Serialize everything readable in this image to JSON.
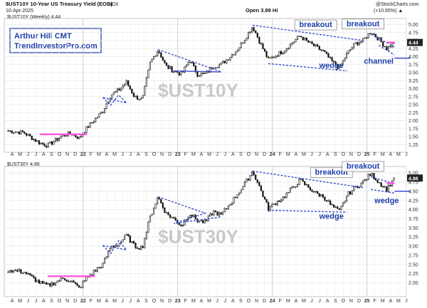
{
  "header": {
    "title1": "$UST10Y 10-Year US Treasury Yield (EOD)",
    "exchange1": "INDX",
    "date": "10-Apr-2025",
    "ohlc1": "Open 3.89 Hi",
    "change1": "(+10.65%) ▲",
    "credit": "@StockCharts.com",
    "series_label1": "$UST10Y (Weekly) 4.44",
    "series_label2": "$UST30Y 4.86"
  },
  "author": {
    "name": "Arthur Hill CMT",
    "site": "TrendInvestorPro.com"
  },
  "colors": {
    "price": "#111111",
    "pattern": "#3a4fd0",
    "base": "#ff55dd",
    "annotation": "#1c3fa8",
    "lastvalue_bg": "#222222",
    "watermark": "#c9c9c9"
  },
  "chart_data": [
    {
      "type": "candlestick",
      "timeframe": "weekly",
      "symbol": "$UST10Y",
      "watermark": "$UST10Y",
      "last_value": 4.44,
      "last_label": "4.44",
      "ylim": [
        1.1,
        5.1
      ],
      "yticks": [
        1.25,
        1.5,
        1.75,
        2.0,
        2.25,
        2.5,
        2.75,
        3.0,
        3.25,
        3.5,
        3.75,
        4.0,
        4.25,
        4.5,
        4.75,
        5.0
      ],
      "ytick_labels": [
        "1.25",
        "1.50",
        "1.75",
        "2.00",
        "2.25",
        "2.50",
        "2.75",
        "3.00",
        "3.25",
        "3.50",
        "3.75",
        "4.00",
        "4.25",
        "4.50",
        "4.75",
        "5.00"
      ],
      "x_range": [
        "2021-03",
        "2025-06"
      ],
      "anchors": [
        [
          "2021-03",
          1.68
        ],
        [
          "2021-05",
          1.62
        ],
        [
          "2021-07",
          1.3
        ],
        [
          "2021-08",
          1.22
        ],
        [
          "2021-10",
          1.55
        ],
        [
          "2021-11",
          1.6
        ],
        [
          "2021-12",
          1.45
        ],
        [
          "2022-01",
          1.78
        ],
        [
          "2022-03",
          2.3
        ],
        [
          "2022-04",
          2.8
        ],
        [
          "2022-05",
          2.95
        ],
        [
          "2022-06",
          3.2
        ],
        [
          "2022-07",
          2.75
        ],
        [
          "2022-08",
          2.65
        ],
        [
          "2022-09",
          3.8
        ],
        [
          "2022-10",
          4.22
        ],
        [
          "2022-11",
          3.7
        ],
        [
          "2022-12",
          3.55
        ],
        [
          "2023-01",
          3.45
        ],
        [
          "2023-02",
          3.9
        ],
        [
          "2023-03",
          3.45
        ],
        [
          "2023-04",
          3.45
        ],
        [
          "2023-05",
          3.7
        ],
        [
          "2023-06",
          3.75
        ],
        [
          "2023-08",
          4.2
        ],
        [
          "2023-09",
          4.55
        ],
        [
          "2023-10",
          4.95
        ],
        [
          "2023-11",
          4.4
        ],
        [
          "2023-12",
          3.9
        ],
        [
          "2024-01",
          4.05
        ],
        [
          "2024-02",
          4.2
        ],
        [
          "2024-04",
          4.65
        ],
        [
          "2024-05",
          4.45
        ],
        [
          "2024-06",
          4.3
        ],
        [
          "2024-07",
          4.15
        ],
        [
          "2024-08",
          3.85
        ],
        [
          "2024-09",
          3.65
        ],
        [
          "2024-10",
          4.1
        ],
        [
          "2024-11",
          4.4
        ],
        [
          "2024-12",
          4.5
        ],
        [
          "2025-01",
          4.78
        ],
        [
          "2025-02",
          4.55
        ],
        [
          "2025-03",
          4.25
        ],
        [
          "2025-04",
          4.44
        ]
      ],
      "patterns": [
        {
          "kind": "base",
          "color": "pink",
          "points": [
            [
              "2021-07",
              1.57
            ],
            [
              "2022-01",
              1.57
            ]
          ]
        },
        {
          "kind": "flag",
          "color": "blue",
          "points": [
            [
              "2022-03",
              2.72
            ],
            [
              "2022-04",
              2.48
            ],
            [
              "2022-05",
              2.8
            ],
            [
              "2022-06",
              2.55
            ],
            [
              "2022-03",
              2.72
            ]
          ]
        },
        {
          "kind": "triangle",
          "color": "blue",
          "points": [
            [
              "2022-10",
              4.22
            ],
            [
              "2023-04",
              3.7
            ],
            [
              "2023-06",
              3.52
            ],
            [
              "2022-12",
              3.55
            ],
            [
              "2023-06",
              3.52
            ]
          ]
        },
        {
          "kind": "wedge",
          "color": "blue",
          "points": [
            [
              "2023-10",
              4.98
            ],
            [
              "2024-12",
              4.5
            ]
          ]
        },
        {
          "kind": "wedge",
          "color": "blue",
          "points": [
            [
              "2023-12",
              3.78
            ],
            [
              "2024-10",
              3.55
            ]
          ]
        },
        {
          "kind": "channel",
          "color": "blue",
          "points": [
            [
              "2025-01",
              4.7
            ],
            [
              "2025-04",
              4.3
            ]
          ]
        },
        {
          "kind": "channel",
          "color": "blue",
          "points": [
            [
              "2025-02",
              4.35
            ],
            [
              "2025-04",
              4.05
            ]
          ]
        },
        {
          "kind": "breakout_level",
          "color": "blue",
          "points": [
            [
              "2025-04",
              3.95
            ],
            [
              "2025-06",
              3.95
            ]
          ]
        },
        {
          "kind": "breakout_level",
          "color": "pink",
          "points": [
            [
              "2025-03",
              4.44
            ],
            [
              "2025-04",
              4.44
            ]
          ]
        }
      ],
      "annotations": [
        {
          "text": "breakout",
          "x": "2024-06",
          "y": 4.92,
          "boxed": true
        },
        {
          "text": "breakout",
          "x": "2024-12",
          "y": 4.95,
          "boxed": true
        },
        {
          "text": "wedge",
          "x": "2024-08",
          "y": 3.65,
          "boxed": false
        },
        {
          "text": "channel",
          "x": "2025-02",
          "y": 3.78,
          "boxed": false
        }
      ]
    },
    {
      "type": "candlestick",
      "timeframe": "weekly",
      "symbol": "$UST30Y",
      "watermark": "$UST30Y",
      "last_value": 4.86,
      "last_label": "4.86",
      "ylim": [
        1.7,
        5.1
      ],
      "yticks": [
        2.0,
        2.25,
        2.5,
        2.75,
        3.0,
        3.25,
        3.5,
        3.75,
        4.0,
        4.25,
        4.5,
        4.75,
        5.0
      ],
      "ytick_labels": [
        "2.00",
        "2.25",
        "2.50",
        "2.75",
        "3.00",
        "3.25",
        "3.50",
        "3.75",
        "4.00",
        "4.25",
        "4.50",
        "4.75",
        "5.00"
      ],
      "x_range": [
        "2021-03",
        "2025-06"
      ],
      "anchors": [
        [
          "2021-03",
          2.35
        ],
        [
          "2021-05",
          2.3
        ],
        [
          "2021-07",
          2.0
        ],
        [
          "2021-08",
          1.92
        ],
        [
          "2021-10",
          2.12
        ],
        [
          "2021-11",
          2.05
        ],
        [
          "2021-12",
          1.85
        ],
        [
          "2022-01",
          2.15
        ],
        [
          "2022-03",
          2.5
        ],
        [
          "2022-04",
          2.98
        ],
        [
          "2022-05",
          3.05
        ],
        [
          "2022-06",
          3.3
        ],
        [
          "2022-07",
          3.0
        ],
        [
          "2022-08",
          2.95
        ],
        [
          "2022-09",
          3.8
        ],
        [
          "2022-10",
          4.35
        ],
        [
          "2022-11",
          3.9
        ],
        [
          "2022-12",
          3.75
        ],
        [
          "2023-01",
          3.55
        ],
        [
          "2023-02",
          3.9
        ],
        [
          "2023-03",
          3.7
        ],
        [
          "2023-04",
          3.65
        ],
        [
          "2023-05",
          3.95
        ],
        [
          "2023-06",
          3.85
        ],
        [
          "2023-08",
          4.4
        ],
        [
          "2023-09",
          4.7
        ],
        [
          "2023-10",
          5.05
        ],
        [
          "2023-11",
          4.55
        ],
        [
          "2023-12",
          4.02
        ],
        [
          "2024-01",
          4.2
        ],
        [
          "2024-02",
          4.35
        ],
        [
          "2024-04",
          4.8
        ],
        [
          "2024-05",
          4.62
        ],
        [
          "2024-06",
          4.45
        ],
        [
          "2024-07",
          4.35
        ],
        [
          "2024-08",
          4.1
        ],
        [
          "2024-09",
          3.95
        ],
        [
          "2024-10",
          4.4
        ],
        [
          "2024-11",
          4.6
        ],
        [
          "2024-12",
          4.75
        ],
        [
          "2025-01",
          4.98
        ],
        [
          "2025-02",
          4.75
        ],
        [
          "2025-03",
          4.55
        ],
        [
          "2025-04",
          4.86
        ]
      ],
      "patterns": [
        {
          "kind": "base",
          "color": "pink",
          "points": [
            [
              "2021-08",
              2.18
            ],
            [
              "2022-02",
              2.18
            ]
          ]
        },
        {
          "kind": "flag",
          "color": "blue",
          "points": [
            [
              "2022-03",
              3.02
            ],
            [
              "2022-04",
              2.8
            ],
            [
              "2022-05",
              3.15
            ],
            [
              "2022-06",
              2.9
            ],
            [
              "2022-03",
              3.02
            ]
          ]
        },
        {
          "kind": "triangle",
          "color": "blue",
          "points": [
            [
              "2022-10",
              4.35
            ],
            [
              "2023-04",
              3.9
            ],
            [
              "2022-12",
              3.62
            ],
            [
              "2023-06",
              3.8
            ]
          ]
        },
        {
          "kind": "wedge",
          "color": "blue",
          "points": [
            [
              "2023-10",
              5.05
            ],
            [
              "2024-12",
              4.6
            ]
          ]
        },
        {
          "kind": "wedge",
          "color": "blue",
          "points": [
            [
              "2023-12",
              3.98
            ],
            [
              "2024-10",
              3.93
            ]
          ]
        },
        {
          "kind": "channel",
          "color": "blue",
          "points": [
            [
              "2025-01",
              4.9
            ],
            [
              "2025-04",
              4.7
            ]
          ]
        },
        {
          "kind": "channel",
          "color": "blue",
          "points": [
            [
              "2025-01",
              4.55
            ],
            [
              "2025-04",
              4.45
            ]
          ]
        },
        {
          "kind": "breakout_level",
          "color": "blue",
          "points": [
            [
              "2025-04",
              4.5
            ],
            [
              "2025-06",
              4.5
            ]
          ]
        },
        {
          "kind": "breakout_level",
          "color": "pink",
          "points": [
            [
              "2025-03",
              4.72
            ],
            [
              "2025-04",
              4.72
            ]
          ]
        }
      ],
      "annotations": [
        {
          "text": "breakout",
          "x": "2024-08",
          "y": 4.95,
          "boxed": true
        },
        {
          "text": "breakout",
          "x": "2024-12",
          "y": 5.12,
          "boxed": true
        },
        {
          "text": "wedge",
          "x": "2024-08",
          "y": 3.75,
          "boxed": false
        },
        {
          "text": "wedge",
          "x": "2025-03",
          "y": 4.18,
          "boxed": false
        }
      ]
    }
  ],
  "x_axis": {
    "month_labels": [
      "A",
      "M",
      "J",
      "J",
      "A",
      "S",
      "O",
      "N",
      "D",
      "22",
      "F",
      "M",
      "A",
      "M",
      "J",
      "J",
      "A",
      "S",
      "O",
      "N",
      "D",
      "23",
      "F",
      "M",
      "A",
      "M",
      "J",
      "J",
      "A",
      "S",
      "O",
      "N",
      "D",
      "24",
      "F",
      "M",
      "A",
      "M",
      "J",
      "J",
      "A",
      "S",
      "O",
      "N",
      "D",
      "25",
      "F",
      "M",
      "A",
      "M",
      "J"
    ],
    "year_labels": [
      "22",
      "23",
      "24",
      "25"
    ]
  }
}
